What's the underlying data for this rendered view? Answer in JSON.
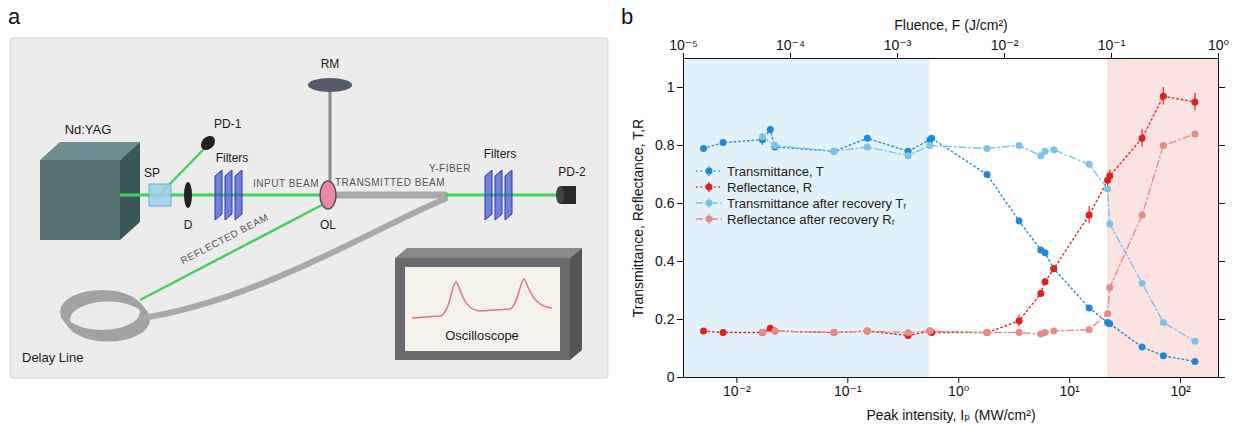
{
  "diagram": {
    "panel_label": "a",
    "labels": {
      "laser": "Nd:YAG",
      "splitter": "SP",
      "photodiode1": "PD-1",
      "filters1": "Filters",
      "diaphragm": "D",
      "input_beam": "INPUT BEAM",
      "mirror": "RM",
      "objective": "OL",
      "transmitted_beam": "TRANSMITTED BEAM",
      "fiber": "Y-FIBER",
      "filters2": "Filters",
      "photodiode2": "PD-2",
      "reflected_beam": "REFLECTED BEAM",
      "delay_line": "Delay Line",
      "oscilloscope": "Oscilloscope"
    }
  },
  "chart_data": {
    "type": "line",
    "panel_label": "b",
    "marker": "circle",
    "x_label": "Peak intensity, Iₚ (MW/cm²)",
    "x2_label": "Fluence, F (J/cm²)",
    "y_label": "Transmittance, Reflectance, T,R",
    "log": "x",
    "xlim": [
      0.0033,
      220
    ],
    "xticks": [
      {
        "value": 0.01,
        "label": "10⁻²"
      },
      {
        "value": 0.1,
        "label": "10⁻¹"
      },
      {
        "value": 1,
        "label": "10⁰"
      },
      {
        "value": 10,
        "label": "10¹"
      },
      {
        "value": 100,
        "label": "10²"
      }
    ],
    "x2lim": [
      1e-05,
      1
    ],
    "x2ticks": [
      {
        "value": 1e-05,
        "label": "10⁻⁵"
      },
      {
        "value": 0.0001,
        "label": "10⁻⁴"
      },
      {
        "value": 0.001,
        "label": "10⁻³"
      },
      {
        "value": 0.01,
        "label": "10⁻²"
      },
      {
        "value": 0.1,
        "label": "10⁻¹"
      },
      {
        "value": 1,
        "label": "10⁰"
      }
    ],
    "ylim": [
      0,
      1.1
    ],
    "yticks": [
      0,
      0.2,
      0.4,
      0.6,
      0.8,
      1
    ],
    "legend": "left",
    "regions": [
      {
        "x0": 0.0033,
        "x1": 0.55,
        "color": "#e3f1fa"
      },
      {
        "x0": 22,
        "x1": 220,
        "color": "#fbe3e1"
      }
    ],
    "series": [
      {
        "name": "Transmittance, T",
        "color": "#1f8ad6",
        "line_style": "dotted",
        "marker": "circle",
        "x": [
          0.005,
          0.0075,
          0.017,
          0.02,
          0.022,
          0.075,
          0.15,
          0.35,
          0.55,
          0.57,
          1.8,
          3.5,
          5.5,
          6.0,
          7.2,
          15,
          22,
          23,
          45,
          70,
          135
        ],
        "values": [
          0.79,
          0.81,
          0.82,
          0.855,
          0.795,
          0.78,
          0.825,
          0.78,
          0.82,
          0.825,
          0.7,
          0.54,
          0.44,
          0.43,
          0.375,
          0.24,
          0.19,
          0.185,
          0.105,
          0.075,
          0.055
        ],
        "errors": [
          0.005,
          0.005,
          0.02,
          0.005,
          0.005,
          0.005,
          0.01,
          0.005,
          0.005,
          0.005,
          0.005,
          0.005,
          0.005,
          0.005,
          0.005,
          0.005,
          0.005,
          0.005,
          0.005,
          0.005,
          0.005
        ]
      },
      {
        "name": "Reflectance, R",
        "color": "#e0201e",
        "line_style": "dotted",
        "marker": "circle",
        "x": [
          0.005,
          0.0075,
          0.017,
          0.02,
          0.022,
          0.075,
          0.15,
          0.35,
          0.55,
          0.57,
          1.8,
          3.5,
          5.5,
          6.0,
          7.2,
          15,
          22,
          23,
          45,
          70,
          135
        ],
        "values": [
          0.16,
          0.155,
          0.155,
          0.17,
          0.16,
          0.155,
          0.16,
          0.145,
          0.16,
          0.155,
          0.155,
          0.195,
          0.29,
          0.33,
          0.375,
          0.56,
          0.68,
          0.695,
          0.825,
          0.97,
          0.95
        ],
        "errors": [
          0.005,
          0.005,
          0.005,
          0.01,
          0.005,
          0.005,
          0.005,
          0.01,
          0.005,
          0.005,
          0.005,
          0.02,
          0.01,
          0.01,
          0.01,
          0.03,
          0.02,
          0.02,
          0.03,
          0.03,
          0.03
        ]
      },
      {
        "name": "Transmittance after recovery Tᵣ",
        "color": "#7cc3ea",
        "line_style": "dashdot",
        "marker": "circle",
        "x": [
          0.017,
          0.022,
          0.075,
          0.15,
          0.35,
          0.55,
          1.8,
          3.5,
          5.5,
          6.0,
          7.2,
          15,
          22,
          23,
          45,
          70,
          135
        ],
        "values": [
          0.83,
          0.8,
          0.78,
          0.795,
          0.765,
          0.8,
          0.79,
          0.8,
          0.765,
          0.78,
          0.785,
          0.735,
          0.65,
          0.53,
          0.325,
          0.19,
          0.125
        ]
      },
      {
        "name": "Reflectance after recovery Rᵣ",
        "color": "#e88a86",
        "line_style": "dashdot",
        "marker": "circle",
        "x": [
          0.017,
          0.022,
          0.075,
          0.15,
          0.35,
          0.55,
          1.8,
          3.5,
          5.5,
          6.0,
          7.2,
          15,
          22,
          23,
          45,
          70,
          135
        ],
        "values": [
          0.155,
          0.16,
          0.155,
          0.16,
          0.155,
          0.16,
          0.155,
          0.155,
          0.15,
          0.155,
          0.16,
          0.165,
          0.22,
          0.31,
          0.56,
          0.8,
          0.84
        ]
      }
    ]
  }
}
